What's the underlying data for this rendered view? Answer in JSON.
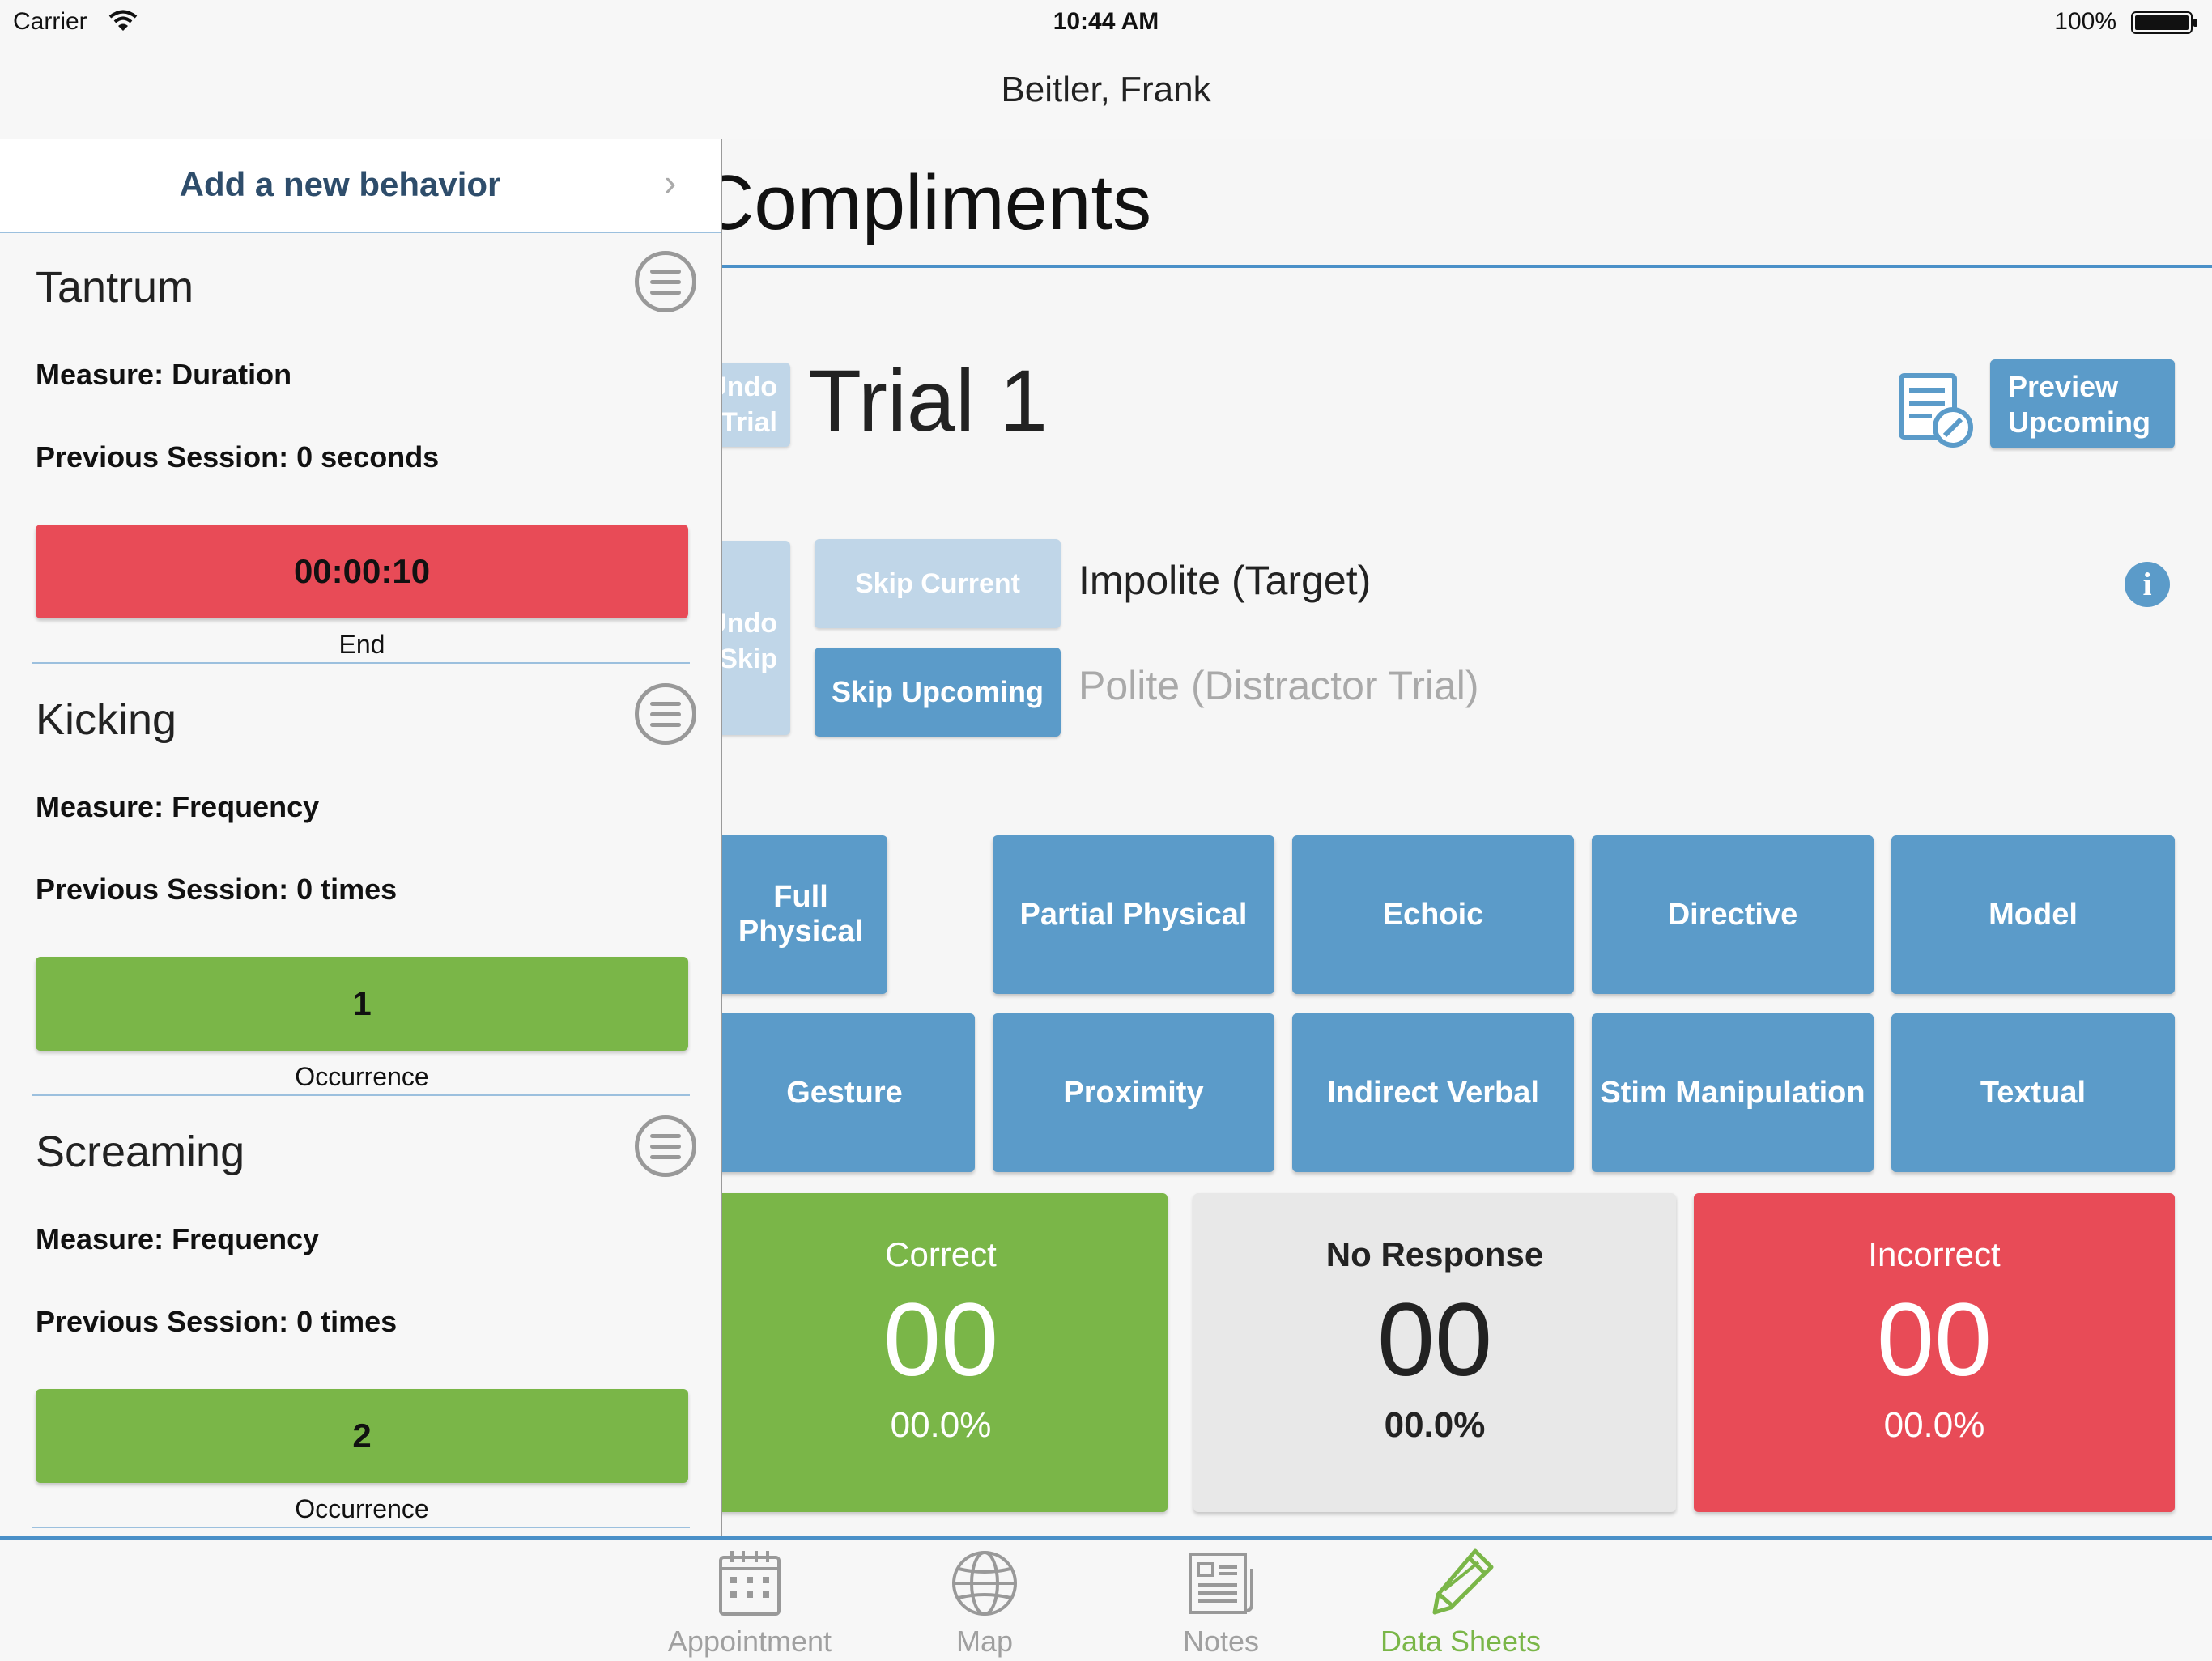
{
  "status_bar": {
    "carrier": "Carrier",
    "time": "10:44 AM",
    "battery": "100%"
  },
  "nav": {
    "title": "Beitler, Frank"
  },
  "main": {
    "program_title": "Compliments",
    "undo_trial_label": "Undo Trial",
    "trial_title": "Trial 1",
    "preview_upcoming_label": "Preview Upcoming",
    "undo_skip_label": "Undo Skip",
    "skip_current_label": "Skip Current",
    "skip_upcoming_label": "Skip Upcoming",
    "current_target": "Impolite (Target)",
    "upcoming_target": "Polite (Distractor Trial)",
    "prompts": [
      "Full Physical",
      "Partial Physical",
      "Echoic",
      "Directive",
      "Model",
      "Gesture",
      "Proximity",
      "Indirect Verbal",
      "Stim Manipulation",
      "Textual"
    ],
    "scores": [
      {
        "label": "Correct",
        "count": "00",
        "percent": "00.0%",
        "color": "#7ab648"
      },
      {
        "label": "No Response",
        "count": "00",
        "percent": "00.0%",
        "color": "#e8e8e8"
      },
      {
        "label": "Incorrect",
        "count": "00",
        "percent": "00.0%",
        "color": "#e84b57"
      }
    ]
  },
  "behaviors_panel": {
    "add_label": "Add a new behavior",
    "items": [
      {
        "name": "Tantrum",
        "measure": "Measure: Duration",
        "previous": "Previous Session: 0 seconds",
        "value": "00:00:10",
        "sub": "End",
        "color": "#e84b57"
      },
      {
        "name": "Kicking",
        "measure": "Measure: Frequency",
        "previous": "Previous Session: 0 times",
        "value": "1",
        "sub": "Occurrence",
        "color": "#7ab648"
      },
      {
        "name": "Screaming",
        "measure": "Measure: Frequency",
        "previous": "Previous Session: 0 times",
        "value": "2",
        "sub": "Occurrence",
        "color": "#7ab648"
      }
    ]
  },
  "tab_bar": {
    "tabs": [
      {
        "label": "Appointment",
        "icon": "calendar-icon",
        "active": false
      },
      {
        "label": "Map",
        "icon": "globe-icon",
        "active": false
      },
      {
        "label": "Notes",
        "icon": "notes-icon",
        "active": false
      },
      {
        "label": "Data Sheets",
        "icon": "pencil-icon",
        "active": true
      }
    ],
    "active_color": "#7ab648"
  }
}
